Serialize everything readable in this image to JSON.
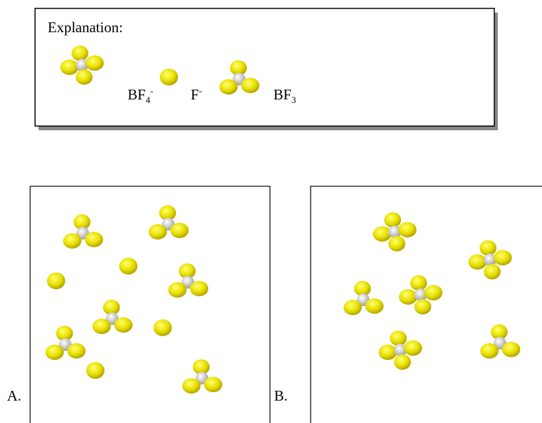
{
  "legend": {
    "title": "Explanation:",
    "items": [
      {
        "base": "BF",
        "sub": "4",
        "sup": "-"
      },
      {
        "base": "F",
        "sup": "-"
      },
      {
        "base": "BF",
        "sub": "3"
      }
    ]
  },
  "panels": [
    {
      "label": "A."
    },
    {
      "label": "B."
    }
  ]
}
